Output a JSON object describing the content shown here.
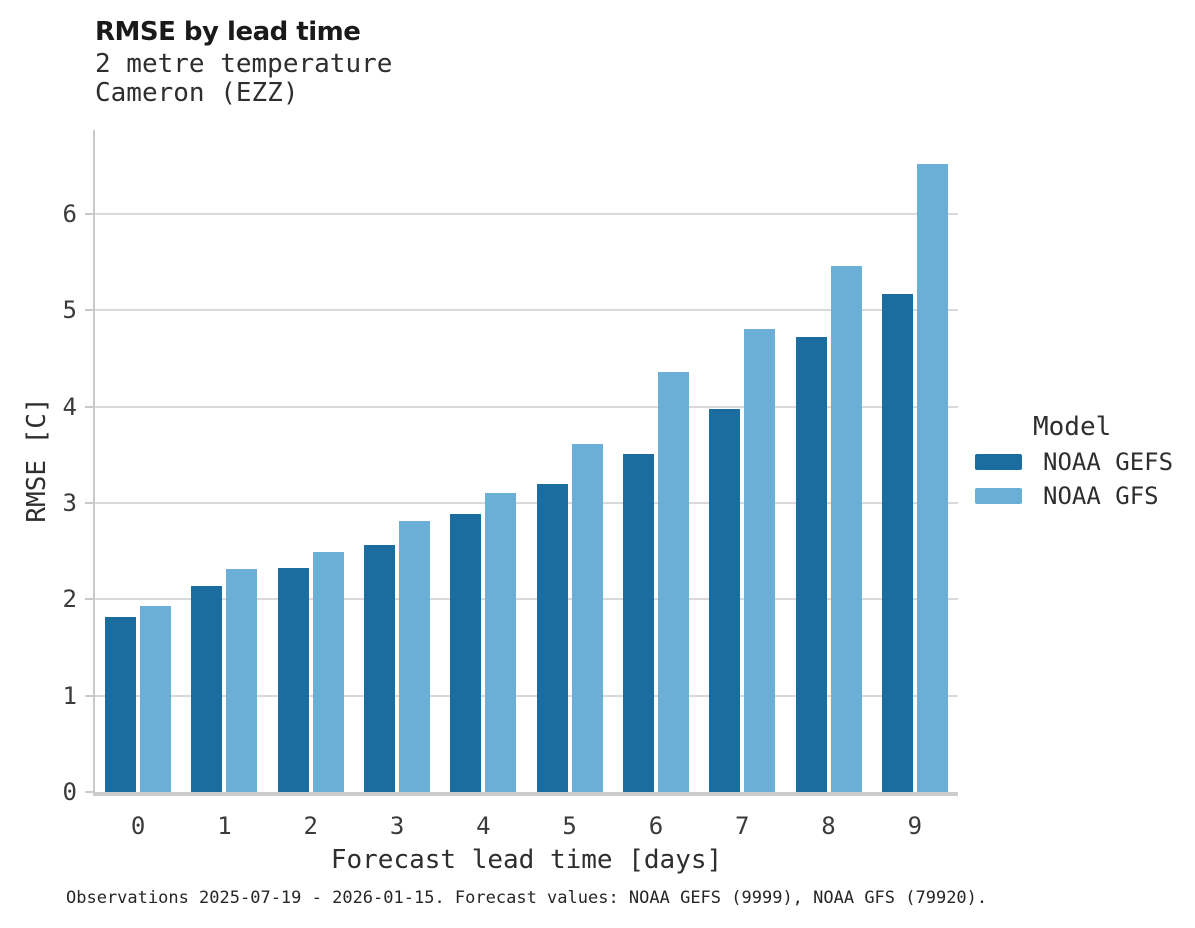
{
  "chart_data": {
    "type": "bar",
    "title": "RMSE by lead time",
    "subtitle": [
      "2 metre temperature",
      "Cameron (EZZ)"
    ],
    "categories": [
      0,
      1,
      2,
      3,
      4,
      5,
      6,
      7,
      8,
      9
    ],
    "series": [
      {
        "name": "NOAA GEFS",
        "color": "#1a6d9e",
        "values": [
          1.82,
          2.14,
          2.32,
          2.56,
          2.88,
          3.2,
          3.51,
          3.97,
          4.72,
          5.17
        ]
      },
      {
        "name": "NOAA GFS",
        "color": "#6bafd6",
        "values": [
          1.93,
          2.31,
          2.49,
          2.81,
          3.1,
          3.61,
          4.36,
          4.8,
          5.46,
          6.52
        ]
      }
    ],
    "xlabel": "Forecast lead time [days]",
    "ylabel": "RMSE [C]",
    "ylim": [
      0,
      6.87
    ],
    "yticks": [
      0,
      1,
      2,
      3,
      4,
      5,
      6
    ],
    "grid": true,
    "legend_title": "Model",
    "legend_position": "right",
    "caption": "Observations 2025-07-19 - 2026-01-15. Forecast values: NOAA GEFS (9999), NOAA GFS (79920)."
  }
}
